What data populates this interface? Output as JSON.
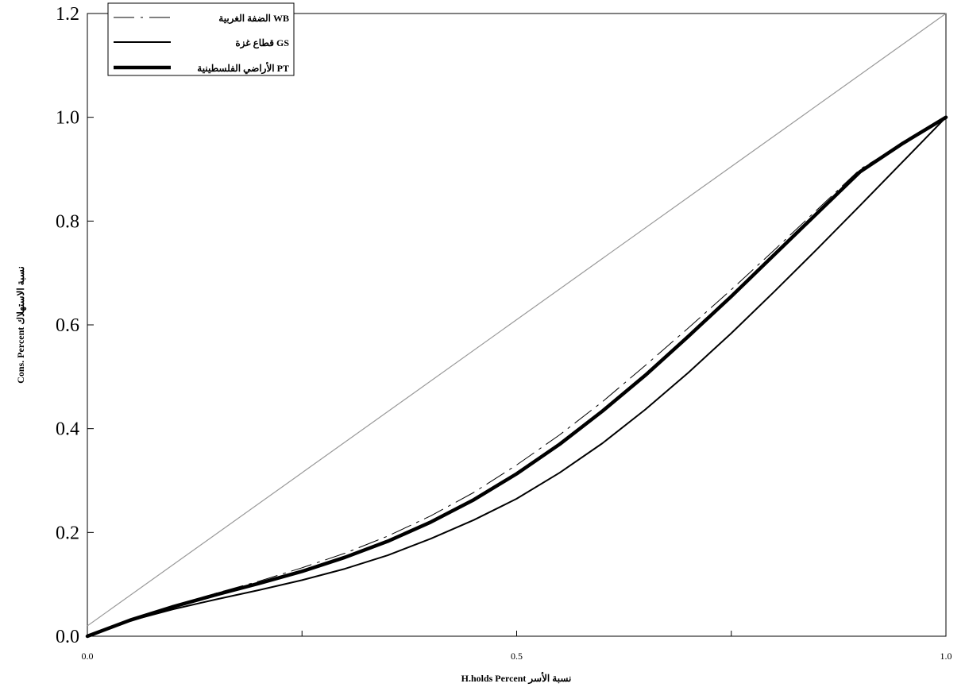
{
  "chart_data": {
    "type": "line",
    "title": "",
    "xlabel": "H.holds Percent  نسبة الأسر",
    "ylabel": "Cons. Percent نسبة الاستهلاك",
    "xlim": [
      0,
      1
    ],
    "ylim": [
      0,
      1.2
    ],
    "x_ticks": [
      0.0,
      0.5,
      1.0
    ],
    "x_tick_labels": [
      "0.0",
      "0.5",
      "1.0"
    ],
    "y_ticks": [
      0.0,
      0.2,
      0.4,
      0.6,
      0.8,
      1.0,
      1.2
    ],
    "y_tick_labels": [
      "0.0",
      "0.2",
      "0.4",
      "0.6",
      "0.8",
      "1.0",
      "1.2"
    ],
    "grid": false,
    "legend_position": "top-left",
    "equality_line": {
      "x": [
        0,
        1
      ],
      "y": [
        0.02,
        1.2
      ],
      "color": "#999999"
    },
    "series": [
      {
        "name": "الضفة الغربية WB",
        "style": "dash-dot",
        "color": "#000000",
        "x": [
          0,
          0.05,
          0.1,
          0.15,
          0.2,
          0.25,
          0.3,
          0.35,
          0.4,
          0.45,
          0.5,
          0.55,
          0.6,
          0.65,
          0.7,
          0.75,
          0.8,
          0.85,
          0.9,
          0.95,
          1.0
        ],
        "y": [
          0,
          0.032,
          0.058,
          0.083,
          0.106,
          0.132,
          0.16,
          0.193,
          0.232,
          0.277,
          0.33,
          0.388,
          0.452,
          0.522,
          0.594,
          0.668,
          0.744,
          0.822,
          0.9,
          0.95,
          1.0
        ]
      },
      {
        "name": "قطاع غزة GS",
        "style": "solid-thin",
        "color": "#000000",
        "x": [
          0,
          0.05,
          0.1,
          0.15,
          0.2,
          0.25,
          0.3,
          0.35,
          0.4,
          0.45,
          0.5,
          0.55,
          0.6,
          0.65,
          0.7,
          0.75,
          0.8,
          0.85,
          0.9,
          0.95,
          1.0
        ],
        "y": [
          0,
          0.03,
          0.052,
          0.071,
          0.089,
          0.108,
          0.13,
          0.156,
          0.188,
          0.224,
          0.265,
          0.315,
          0.372,
          0.437,
          0.508,
          0.584,
          0.664,
          0.746,
          0.83,
          0.915,
          1.0
        ]
      },
      {
        "name": "الأراضي الفلسطينية PT",
        "style": "solid-thick",
        "color": "#000000",
        "x": [
          0,
          0.05,
          0.1,
          0.15,
          0.2,
          0.25,
          0.3,
          0.35,
          0.4,
          0.45,
          0.5,
          0.55,
          0.6,
          0.65,
          0.7,
          0.75,
          0.8,
          0.85,
          0.9,
          0.95,
          1.0
        ],
        "y": [
          0,
          0.031,
          0.057,
          0.08,
          0.102,
          0.125,
          0.152,
          0.183,
          0.22,
          0.263,
          0.313,
          0.37,
          0.434,
          0.503,
          0.578,
          0.655,
          0.735,
          0.815,
          0.895,
          0.95,
          1.0
        ]
      }
    ]
  }
}
